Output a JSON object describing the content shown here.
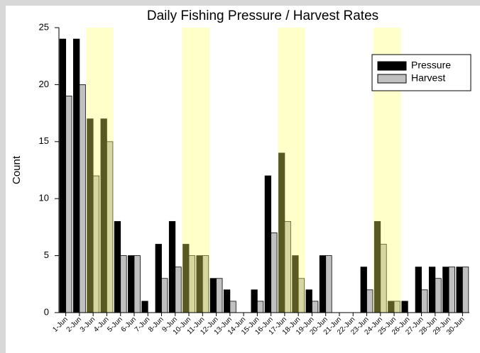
{
  "chart_data": {
    "type": "bar",
    "title": "Daily Fishing Pressure / Harvest Rates",
    "ylabel": "Count",
    "categories": [
      "1-Jun",
      "2-Jun",
      "3-Jun",
      "4-Jun",
      "5-Jun",
      "6-Jun",
      "7-Jun",
      "8-Jun",
      "9-Jun",
      "10-Jun",
      "11-Jun",
      "12-Jun",
      "13-Jun",
      "14-Jun",
      "15-Jun",
      "16-Jun",
      "17-Jun",
      "18-Jun",
      "19-Jun",
      "20-Jun",
      "21-Jun",
      "22-Jun",
      "23-Jun",
      "24-Jun",
      "25-Jun",
      "26-Jun",
      "27-Jun",
      "28-Jun",
      "29-Jun",
      "30-Jun"
    ],
    "series": [
      {
        "name": "Pressure",
        "color": "#000000",
        "values": [
          24,
          24,
          17,
          17,
          8,
          5,
          1,
          6,
          8,
          6,
          5,
          3,
          2,
          0,
          2,
          12,
          14,
          5,
          2,
          5,
          0,
          0,
          4,
          8,
          1,
          1,
          4,
          4,
          4,
          4
        ]
      },
      {
        "name": "Harvest",
        "color": "#c0c0c0",
        "values": [
          19,
          20,
          12,
          15,
          5,
          5,
          0,
          3,
          4,
          5,
          5,
          3,
          1,
          0,
          1,
          7,
          8,
          3,
          1,
          5,
          0,
          0,
          2,
          6,
          1,
          0,
          2,
          3,
          4,
          4
        ]
      }
    ],
    "shaded_ranges": [
      [
        2,
        3
      ],
      [
        9,
        10
      ],
      [
        16,
        17
      ],
      [
        23,
        24
      ]
    ],
    "shade_color": "#ffff66",
    "ylim": [
      0,
      25
    ],
    "yticks": [
      0,
      5,
      10,
      15,
      20,
      25
    ],
    "grid": false,
    "legend": "upper right"
  }
}
